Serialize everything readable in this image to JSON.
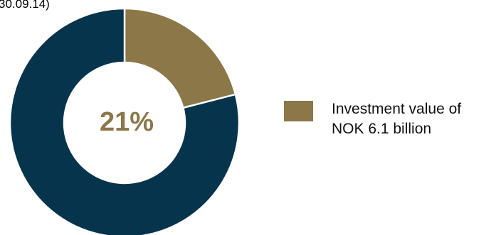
{
  "header": {
    "note": "30.09.14)"
  },
  "chart_data": {
    "type": "pie",
    "title": "",
    "center_label": "21%",
    "slices": [
      {
        "label": "Investment value of NOK 6.1 billion",
        "value": 21,
        "color": "#8B7748",
        "in_legend": true
      },
      {
        "label": "",
        "value": 79,
        "color": "#06344C",
        "in_legend": false
      }
    ],
    "donut": true,
    "legend_position": "right"
  },
  "legend": {
    "items": [
      {
        "label": "Investment value of\nNOK 6.1 billion",
        "color": "#8B7748"
      }
    ]
  },
  "colors": {
    "accent_gold": "#8B7748",
    "navy": "#06344C"
  }
}
